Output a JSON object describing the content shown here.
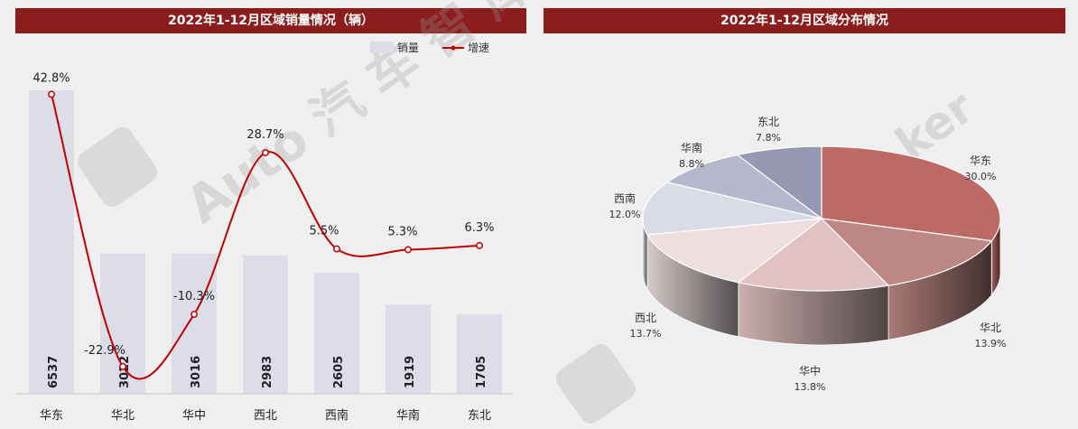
{
  "left_title": "2022年1-12月区域销量情况（辆）",
  "right_title": "2022年1-12月区域分布情况",
  "legend": {
    "bar": "销量",
    "line": "增速"
  },
  "colors": {
    "title_bg": "#8b1d1d",
    "bar": "#dcdde8",
    "line": "#c00000"
  },
  "watermark": "Auto 汽 车 智 库",
  "chart_data": [
    {
      "type": "bar",
      "categories": [
        "华东",
        "华北",
        "华中",
        "西北",
        "西南",
        "华南",
        "东北"
      ],
      "series": [
        {
          "name": "销量",
          "values": [
            6537,
            3022,
            3016,
            2983,
            2605,
            1919,
            1705
          ]
        },
        {
          "name": "增速",
          "type": "line",
          "values": [
            42.8,
            -22.9,
            -10.3,
            28.7,
            5.5,
            5.3,
            6.3
          ],
          "labels": [
            "42.8%",
            "-22.9%",
            "-10.3%",
            "28.7%",
            "5.5%",
            "5.3%",
            "6.3%"
          ]
        }
      ],
      "legend_position": "top-right"
    },
    {
      "type": "pie",
      "categories": [
        "华东",
        "华北",
        "华中",
        "西北",
        "西南",
        "华南",
        "东北"
      ],
      "values": [
        30.0,
        13.9,
        13.8,
        13.7,
        12.0,
        8.8,
        7.8
      ],
      "labels": [
        "30.0%",
        "13.9%",
        "13.8%",
        "13.7%",
        "12.0%",
        "8.8%",
        "7.8%"
      ],
      "colors": [
        "#bd6a66",
        "#bd8883",
        "#e1c2c2",
        "#eedede",
        "#d9dbe6",
        "#b5b7cb",
        "#9799b3"
      ]
    }
  ]
}
